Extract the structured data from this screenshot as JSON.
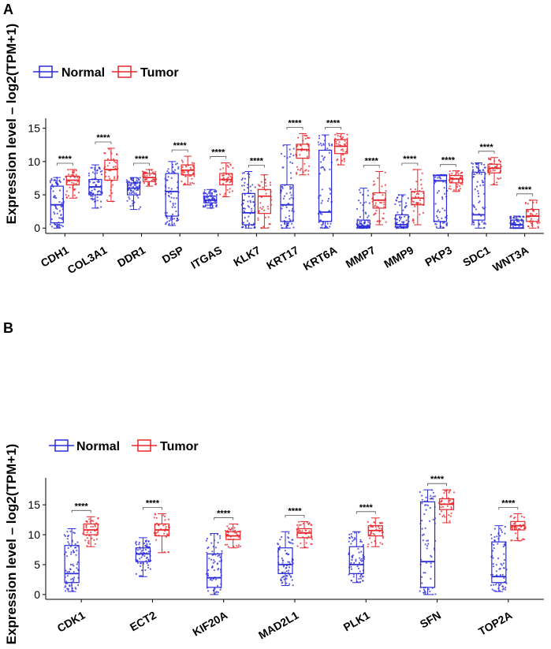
{
  "chart_data": [
    {
      "panel": "A",
      "type": "box",
      "ylabel": "Expression level – log2(TPM+1)",
      "ylim": [
        -0.8,
        16.5
      ],
      "yticks": [
        0,
        5,
        10,
        15
      ],
      "legend": {
        "title": "",
        "placement": "top-left",
        "entries": [
          {
            "name": "Normal",
            "color": "#2b2bd9"
          },
          {
            "name": "Tumor",
            "color": "#e8262b"
          }
        ]
      },
      "categories": [
        "CDH1",
        "COL3A1",
        "DDR1",
        "DSP",
        "ITGAS",
        "KLK7",
        "KRT17",
        "KRT6A",
        "MMP7",
        "MMP9",
        "PKP3",
        "SDC1",
        "WNT3A"
      ],
      "significance": [
        "****",
        "****",
        "****",
        "****",
        "****",
        "****",
        "****",
        "****",
        "****",
        "****",
        "****",
        "****",
        "****"
      ],
      "series": [
        {
          "name": "Normal",
          "stats": [
            {
              "min": 0,
              "q1": 0.8,
              "median": 3.5,
              "q3": 6.3,
              "max": 7.6
            },
            {
              "min": 3.0,
              "q1": 5.0,
              "median": 6.2,
              "q3": 7.3,
              "max": 9.5
            },
            {
              "min": 2.8,
              "q1": 5.0,
              "median": 6.0,
              "q3": 6.8,
              "max": 7.6
            },
            {
              "min": 0.4,
              "q1": 1.8,
              "median": 5.5,
              "q3": 8.2,
              "max": 10.0
            },
            {
              "min": 3.0,
              "q1": 3.8,
              "median": 4.2,
              "q3": 4.8,
              "max": 5.8
            },
            {
              "min": 0,
              "q1": 0.5,
              "median": 2.3,
              "q3": 5.2,
              "max": 8.5
            },
            {
              "min": 0,
              "q1": 1.0,
              "median": 3.5,
              "q3": 6.5,
              "max": 12.5
            },
            {
              "min": 0,
              "q1": 1.0,
              "median": 2.4,
              "q3": 11.7,
              "max": 14.0
            },
            {
              "min": 0,
              "q1": 0.1,
              "median": 0.3,
              "q3": 1.2,
              "max": 6.0
            },
            {
              "min": 0,
              "q1": 0.2,
              "median": 0.5,
              "q3": 2.0,
              "max": 5.0
            },
            {
              "min": 0,
              "q1": 1.0,
              "median": 7.1,
              "q3": 7.9,
              "max": 8.0
            },
            {
              "min": 0,
              "q1": 1.2,
              "median": 2.0,
              "q3": 8.4,
              "max": 9.8
            },
            {
              "min": 0,
              "q1": 0,
              "median": 0.5,
              "q3": 1.2,
              "max": 1.8
            }
          ]
        },
        {
          "name": "Tumor",
          "stats": [
            {
              "min": 4.5,
              "q1": 6.5,
              "median": 7.2,
              "q3": 7.8,
              "max": 8.8
            },
            {
              "min": 4.0,
              "q1": 7.2,
              "median": 8.8,
              "q3": 10.2,
              "max": 12.0
            },
            {
              "min": 6.3,
              "q1": 7.0,
              "median": 7.6,
              "q3": 8.2,
              "max": 8.8
            },
            {
              "min": 6.5,
              "q1": 8.0,
              "median": 8.7,
              "q3": 9.5,
              "max": 10.8
            },
            {
              "min": 4.7,
              "q1": 6.5,
              "median": 7.3,
              "q3": 8.2,
              "max": 9.8
            },
            {
              "min": 0,
              "q1": 2.2,
              "median": 4.8,
              "q3": 5.8,
              "max": 8.0
            },
            {
              "min": 8.0,
              "q1": 10.5,
              "median": 11.8,
              "q3": 12.6,
              "max": 14.2
            },
            {
              "min": 9.5,
              "q1": 11.2,
              "median": 12.3,
              "q3": 13.3,
              "max": 14.2
            },
            {
              "min": 0.5,
              "q1": 3.0,
              "median": 4.2,
              "q3": 5.3,
              "max": 8.5
            },
            {
              "min": 0.5,
              "q1": 3.5,
              "median": 4.5,
              "q3": 5.5,
              "max": 8.8
            },
            {
              "min": 5.5,
              "q1": 6.8,
              "median": 7.4,
              "q3": 7.9,
              "max": 8.6
            },
            {
              "min": 6.5,
              "q1": 8.3,
              "median": 9.0,
              "q3": 9.6,
              "max": 10.6
            },
            {
              "min": 0,
              "q1": 1.0,
              "median": 1.8,
              "q3": 2.8,
              "max": 4.2
            }
          ]
        }
      ]
    },
    {
      "panel": "B",
      "type": "box",
      "ylabel": "Expression level – log2(TPM+1)",
      "ylim": [
        -0.8,
        19.5
      ],
      "yticks": [
        0,
        5,
        10,
        15
      ],
      "legend": {
        "title": "",
        "placement": "top-left",
        "entries": [
          {
            "name": "Normal",
            "color": "#2b2bd9"
          },
          {
            "name": "Tumor",
            "color": "#e8262b"
          }
        ]
      },
      "categories": [
        "CDK1",
        "ECT2",
        "KIF20A",
        "MAD2L1",
        "PLK1",
        "SFN",
        "TOP2A"
      ],
      "significance": [
        "****",
        "****",
        "****",
        "****",
        "****",
        "****",
        "****"
      ],
      "series": [
        {
          "name": "Normal",
          "stats": [
            {
              "min": 0.5,
              "q1": 2.0,
              "median": 3.5,
              "q3": 8.2,
              "max": 11.0
            },
            {
              "min": 3.0,
              "q1": 5.5,
              "median": 6.8,
              "q3": 7.8,
              "max": 9.5
            },
            {
              "min": 0,
              "q1": 1.2,
              "median": 2.8,
              "q3": 6.8,
              "max": 10.2
            },
            {
              "min": 1.5,
              "q1": 3.5,
              "median": 5.0,
              "q3": 7.8,
              "max": 10.5
            },
            {
              "min": 2.0,
              "q1": 3.5,
              "median": 5.0,
              "q3": 8.0,
              "max": 10.5
            },
            {
              "min": 0,
              "q1": 1.2,
              "median": 5.5,
              "q3": 15.5,
              "max": 17.5
            },
            {
              "min": 0.5,
              "q1": 2.0,
              "median": 3.0,
              "q3": 8.8,
              "max": 11.5
            }
          ]
        },
        {
          "name": "Tumor",
          "stats": [
            {
              "min": 8.0,
              "q1": 10.0,
              "median": 10.8,
              "q3": 11.8,
              "max": 13.0
            },
            {
              "min": 7.0,
              "q1": 9.8,
              "median": 10.8,
              "q3": 11.8,
              "max": 13.5
            },
            {
              "min": 7.8,
              "q1": 9.2,
              "median": 9.8,
              "q3": 10.5,
              "max": 11.8
            },
            {
              "min": 7.8,
              "q1": 9.5,
              "median": 10.3,
              "q3": 11.0,
              "max": 12.2
            },
            {
              "min": 8.0,
              "q1": 9.8,
              "median": 10.7,
              "q3": 11.5,
              "max": 12.8
            },
            {
              "min": 12.0,
              "q1": 14.2,
              "median": 15.1,
              "q3": 16.0,
              "max": 17.5
            },
            {
              "min": 9.0,
              "q1": 10.8,
              "median": 11.5,
              "q3": 12.2,
              "max": 13.5
            }
          ]
        }
      ]
    }
  ]
}
